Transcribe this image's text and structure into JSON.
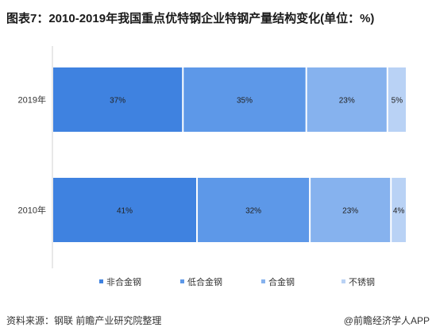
{
  "title": "图表7：2010-2019年我国重点优特钢企业特钢产量结构变化(单位：%)",
  "source": "资料来源：钢联 前瞻产业研究院整理",
  "brand": "@前瞻经济学人APP",
  "colors": {
    "series": [
      "#3f82e0",
      "#5d98e8",
      "#86b2ee",
      "#b9d2f5"
    ],
    "axis": "#d0d0d0",
    "text": "#333333"
  },
  "chart_data": {
    "type": "bar",
    "orientation": "horizontal",
    "stacked": "percent",
    "categories": [
      "2019年",
      "2010年"
    ],
    "series": [
      {
        "name": "非合金钢",
        "values": [
          37,
          41
        ]
      },
      {
        "name": "低合金钢",
        "values": [
          35,
          32
        ]
      },
      {
        "name": "合金钢",
        "values": [
          23,
          23
        ]
      },
      {
        "name": "不锈钢",
        "values": [
          5,
          4
        ]
      }
    ],
    "data_labels": [
      [
        "37%",
        "35%",
        "23%",
        "5%"
      ],
      [
        "41%",
        "32%",
        "23%",
        "4%"
      ]
    ],
    "xlim": [
      0,
      100
    ],
    "grid": false,
    "legend_position": "bottom"
  }
}
